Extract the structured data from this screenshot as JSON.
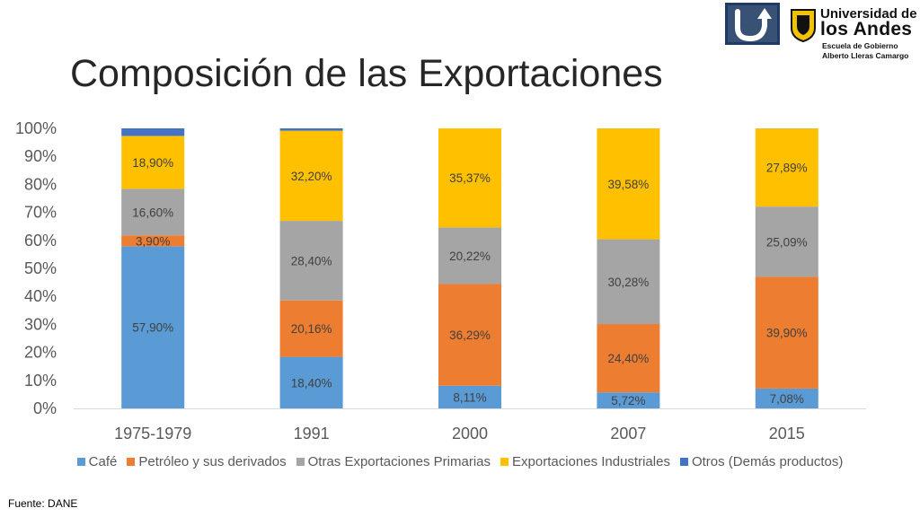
{
  "slide": {
    "title": "Composición de las Exportaciones",
    "source": "Fuente: DANE"
  },
  "logos": {
    "university_line1": "Universidad de",
    "university_line2": "los Andes",
    "school_line1": "Escuela de Gobierno",
    "school_line2": "Alberto Lleras Camargo"
  },
  "chart_data": {
    "type": "bar",
    "stacked": true,
    "percent_stacked": true,
    "categories": [
      "1975-1979",
      "1991",
      "2000",
      "2007",
      "2015"
    ],
    "ylim": [
      0,
      100
    ],
    "yticks": [
      "0%",
      "10%",
      "20%",
      "30%",
      "40%",
      "50%",
      "60%",
      "70%",
      "80%",
      "90%",
      "100%"
    ],
    "legend_position": "bottom",
    "grid": false,
    "series": [
      {
        "name": "Café",
        "color": "#5b9bd5",
        "values": [
          57.9,
          18.4,
          8.11,
          5.72,
          7.08
        ],
        "labels": [
          "57,90%",
          "18,40%",
          "8,11%",
          "5,72%",
          "7,08%"
        ]
      },
      {
        "name": "Petróleo y sus derivados",
        "color": "#ed7d31",
        "values": [
          3.9,
          20.16,
          36.29,
          24.4,
          39.9
        ],
        "labels": [
          "3,90%",
          "20,16%",
          "36,29%",
          "24,40%",
          "39,90%"
        ]
      },
      {
        "name": "Otras Exportaciones Primarias",
        "color": "#a5a5a5",
        "values": [
          16.6,
          28.4,
          20.22,
          30.28,
          25.09
        ],
        "labels": [
          "16,60%",
          "28,40%",
          "20,22%",
          "30,28%",
          "25,09%"
        ]
      },
      {
        "name": "Exportaciones Industriales",
        "color": "#ffc000",
        "values": [
          18.9,
          32.2,
          35.37,
          39.58,
          27.89
        ],
        "labels": [
          "18,90%",
          "32,20%",
          "35,37%",
          "39,58%",
          "27,89%"
        ]
      },
      {
        "name": "Otros (Demás productos)",
        "color": "#4472c4",
        "values": [
          2.7,
          0.84,
          0.01,
          0.02,
          0.04
        ],
        "labels": [
          "",
          "",
          "",
          "",
          ""
        ]
      }
    ]
  }
}
